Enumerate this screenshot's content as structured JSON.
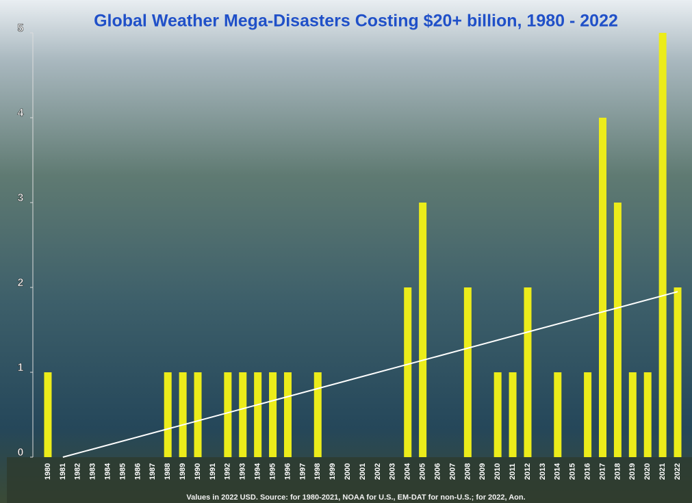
{
  "chart_data": {
    "type": "bar",
    "title": "Global Weather Mega-Disasters Costing $20+ billion, 1980 - 2022",
    "note": "Values in 2022 USD. Source: for 1980-2021, NOAA for U.S., EM-DAT for non-U.S.; for 2022, Aon.",
    "categories": [
      "1980",
      "1981",
      "1982",
      "1983",
      "1984",
      "1985",
      "1986",
      "1987",
      "1988",
      "1989",
      "1990",
      "1991",
      "1992",
      "1993",
      "1994",
      "1995",
      "1996",
      "1997",
      "1998",
      "1999",
      "2000",
      "2001",
      "2002",
      "2003",
      "2004",
      "2005",
      "2006",
      "2007",
      "2008",
      "2009",
      "2010",
      "2011",
      "2012",
      "2013",
      "2014",
      "2015",
      "2016",
      "2017",
      "2018",
      "2019",
      "2020",
      "2021",
      "2022"
    ],
    "values": [
      1,
      0,
      0,
      0,
      0,
      0,
      0,
      0,
      1,
      1,
      1,
      0,
      1,
      1,
      1,
      1,
      1,
      0,
      1,
      0,
      0,
      0,
      0,
      0,
      2,
      3,
      0,
      0,
      2,
      0,
      1,
      1,
      2,
      0,
      1,
      0,
      1,
      4,
      3,
      1,
      1,
      5,
      2
    ],
    "color": "#ecec1a",
    "trend_line": {
      "color": "#ffffff",
      "x": [
        1981,
        2022
      ],
      "values": [
        0,
        1.95
      ]
    },
    "ylim": [
      0,
      5
    ],
    "yticks": [
      0,
      1,
      2,
      3,
      4,
      5
    ]
  }
}
